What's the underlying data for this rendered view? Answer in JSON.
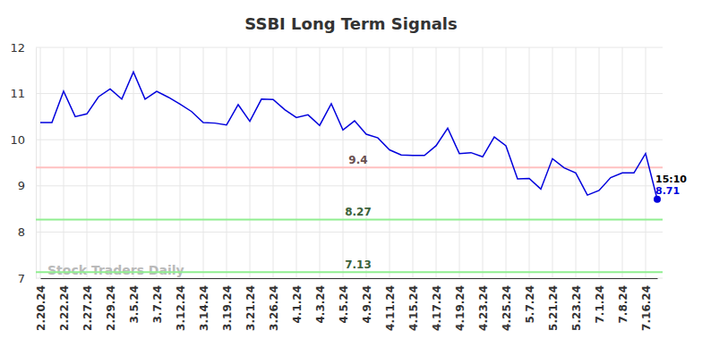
{
  "chart_data": {
    "type": "line",
    "title": "SSBI Long Term Signals",
    "categories": [
      "2.20.24",
      null,
      "2.22.24",
      null,
      "2.27.24",
      null,
      "2.29.24",
      null,
      "3.5.24",
      null,
      "3.7.24",
      null,
      "3.12.24",
      null,
      "3.14.24",
      null,
      "3.19.24",
      null,
      "3.21.24",
      null,
      "3.26.24",
      null,
      "4.1.24",
      null,
      "4.3.24",
      null,
      "4.5.24",
      null,
      "4.9.24",
      null,
      "4.11.24",
      null,
      "4.15.24",
      null,
      "4.17.24",
      null,
      "4.19.24",
      null,
      "4.23.24",
      null,
      "4.25.24",
      null,
      "5.7.24",
      null,
      "5.21.24",
      null,
      "5.23.24",
      null,
      "7.1.24",
      null,
      "7.8.24",
      null,
      "7.16.24",
      null
    ],
    "values": [
      10.37,
      10.37,
      11.05,
      10.5,
      10.56,
      10.93,
      11.1,
      10.88,
      11.47,
      10.88,
      11.05,
      10.92,
      10.77,
      10.61,
      10.37,
      10.36,
      10.32,
      10.76,
      10.4,
      10.88,
      10.87,
      10.65,
      10.48,
      10.54,
      10.31,
      10.78,
      10.21,
      10.41,
      10.12,
      10.04,
      9.78,
      9.67,
      9.66,
      9.66,
      9.87,
      10.25,
      9.7,
      9.72,
      9.63,
      10.06,
      9.87,
      9.15,
      9.16,
      8.93,
      9.59,
      9.39,
      9.28,
      8.8,
      8.9,
      9.18,
      9.28,
      9.28,
      9.7,
      8.71
    ],
    "color": "#0000dd",
    "ylim": [
      7,
      12
    ],
    "yticks": [
      7,
      8,
      9,
      10,
      11,
      12
    ],
    "grid": true,
    "reference_lines": [
      {
        "value": 9.4,
        "label": "9.4",
        "color": "#ffc0c0"
      },
      {
        "value": 8.27,
        "label": "8.27",
        "color": "#90ee90"
      },
      {
        "value": 7.13,
        "label": "7.13",
        "color": "#90ee90"
      }
    ],
    "annotations": [
      {
        "text": "15:10"
      }
    ],
    "watermark": "Stock Traders Daily"
  }
}
